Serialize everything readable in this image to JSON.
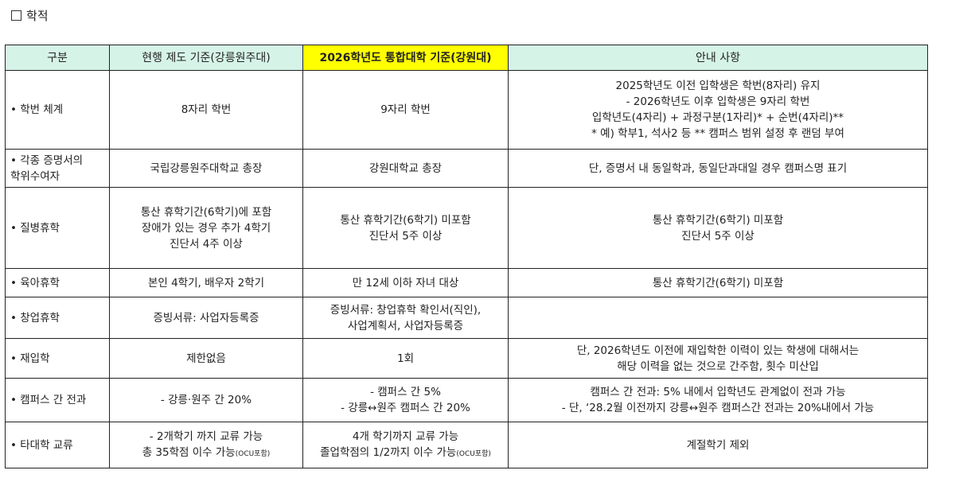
{
  "section_title": "학적",
  "colors": {
    "header_bg": "#d6f3e8",
    "highlight_bg": "#ffff00"
  },
  "headers": [
    "구분",
    "현행 제도 기준(강릉원주대)",
    "2026학년도 통합대학 기준(강원대)",
    "안내 사항"
  ],
  "rows": [
    {
      "category": [
        "• 학번 체계"
      ],
      "current": [
        "8자리 학번"
      ],
      "new": [
        "9자리 학번"
      ],
      "notes": [
        "2025학년도 이전 입학생은 학번(8자리) 유지",
        "- 2026학년도 이후 입학생은 9자리 학번",
        "입학년도(4자리) + 과정구분(1자리)* + 순번(4자리)**",
        "* 예) 학부1, 석사2 등 ** 캠퍼스 범위 설정 후 랜덤 부여"
      ]
    },
    {
      "category": [
        "• 각종 증명서의",
        "학위수여자"
      ],
      "current": [
        "국립강릉원주대학교 총장"
      ],
      "new": [
        "강원대학교 총장"
      ],
      "notes": [
        "단, 증명서 내 동일학과, 동일단과대일 경우 캠퍼스명 표기"
      ]
    },
    {
      "category": [
        "• 질병휴학"
      ],
      "current": [
        "통산 휴학기간(6학기)에 포함",
        "장애가 있는 경우 추가 4학기",
        "진단서 4주 이상"
      ],
      "new": [
        "통산 휴학기간(6학기) 미포함",
        "진단서 5주 이상"
      ],
      "notes": [
        "통산 휴학기간(6학기) 미포함",
        "진단서 5주 이상"
      ]
    },
    {
      "category": [
        "• 육아휴학"
      ],
      "current": [
        "본인 4학기, 배우자 2학기"
      ],
      "new": [
        "만 12세 이하 자녀 대상"
      ],
      "notes": [
        "통산 휴학기간(6학기) 미포함"
      ]
    },
    {
      "category": [
        "• 창업휴학"
      ],
      "current": [
        "증빙서류: 사업자등록증"
      ],
      "new": [
        "증빙서류: 창업휴학 확인서(직인),",
        "사업계획서, 사업자등록증"
      ],
      "notes": []
    },
    {
      "category": [
        "• 재입학"
      ],
      "current": [
        "제한없음"
      ],
      "new": [
        "1회"
      ],
      "notes": [
        "단, 2026학년도 이전에 재입학한 이력이 있는 학생에 대해서는",
        "해당 이력을 없는 것으로 간주함, 횟수 미산입"
      ]
    },
    {
      "category": [
        "• 캠퍼스 간 전과"
      ],
      "current": [
        "- 강릉·원주 간 20%"
      ],
      "new": [
        "- 캠퍼스 간 5%",
        "- 강릉↔원주 캠퍼스 간 20%"
      ],
      "notes": [
        "캠퍼스 간 전과: 5% 내에서 입학년도 관계없이 전과 가능",
        "- 단, ‘28.2월 이전까지 강릉↔원주 캠퍼스간 전과는 20%내에서 가능"
      ]
    },
    {
      "category": [
        "• 타대학 교류"
      ],
      "current": [
        "- 2개학기 까지 교류 가능",
        "총 35학점 이수 가능"
      ],
      "current_small": "(OCU포함)",
      "new": [
        "4개 학기까지 교류 가능",
        "졸업학점의 1/2까지 이수 가능"
      ],
      "new_small": "(OCU포함)",
      "notes": [
        "계절학기 제외"
      ]
    }
  ]
}
